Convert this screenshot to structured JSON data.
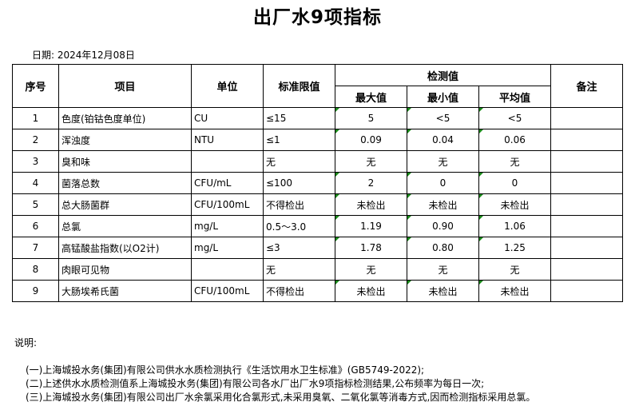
{
  "title": "出厂水9项指标",
  "date": "日期: 2024年12月08日",
  "headers": {
    "no": "序号",
    "item": "项目",
    "unit": "单位",
    "limit": "标准限值",
    "measured": "检测值",
    "max": "最大值",
    "min": "最小值",
    "avg": "平均值",
    "remark": "备注"
  },
  "rows": [
    {
      "no": "1",
      "item": "色度(铂钴色度单位)",
      "unit": "CU",
      "limit": "≤15",
      "max": "5",
      "min": "<5",
      "avg": "<5",
      "remark": ""
    },
    {
      "no": "2",
      "item": "浑浊度",
      "unit": "NTU",
      "limit": "≤1",
      "max": "0.09",
      "min": "0.04",
      "avg": "0.06",
      "remark": ""
    },
    {
      "no": "3",
      "item": "臭和味",
      "unit": "",
      "limit": "无",
      "max": "无",
      "min": "无",
      "avg": "无",
      "remark": ""
    },
    {
      "no": "4",
      "item": "菌落总数",
      "unit": "CFU/mL",
      "limit": "≤100",
      "max": "2",
      "min": "0",
      "avg": "0",
      "remark": ""
    },
    {
      "no": "5",
      "item": "总大肠菌群",
      "unit": "CFU/100mL",
      "limit": "不得检出",
      "max": "未检出",
      "min": "未检出",
      "avg": "未检出",
      "remark": ""
    },
    {
      "no": "6",
      "item": "总氯",
      "unit": "mg/L",
      "limit": "0.5～3.0",
      "max": "1.19",
      "min": "0.90",
      "avg": "1.06",
      "remark": ""
    },
    {
      "no": "7",
      "item": "高锰酸盐指数(以O2计)",
      "unit": "mg/L",
      "limit": "≤3",
      "max": "1.78",
      "min": "0.80",
      "avg": "1.25",
      "remark": ""
    },
    {
      "no": "8",
      "item": "肉眼可见物",
      "unit": "",
      "limit": "无",
      "max": "无",
      "min": "无",
      "avg": "无",
      "remark": ""
    },
    {
      "no": "9",
      "item": "大肠埃希氏菌",
      "unit": "CFU/100mL",
      "limit": "不得检出",
      "max": "未检出",
      "min": "未检出",
      "avg": "未检出",
      "remark": ""
    }
  ],
  "notes": {
    "label": "说明:",
    "items": [
      "(一)上海城投水务(集团)有限公司供水水质检测执行《生活饮用水卫生标准》(GB5749-2022);",
      "(二)上述供水水质检测值系上海城投水务(集团)有限公司各水厂出厂水9项指标检测结果,公布频率为每日一次;",
      "(三)上海城投水务(集团)有限公司出厂水余氯采用化合氯形式,未采用臭氧、二氧化氯等消毒方式,因而检测指标采用总氯。"
    ]
  },
  "colors": {
    "comment_marker": "#1a8a1a"
  }
}
